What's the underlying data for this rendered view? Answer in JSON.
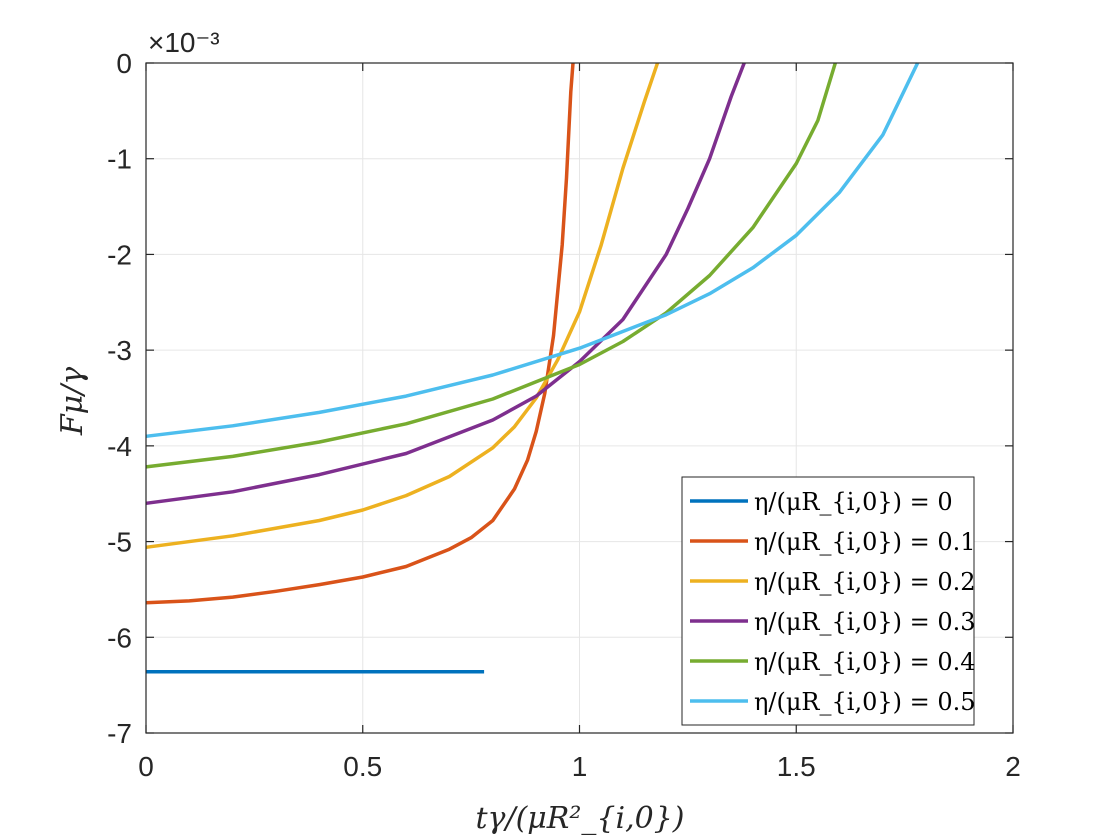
{
  "chart_data": {
    "type": "line",
    "xlabel": "tγ/(μR²_{i,0})",
    "ylabel": "Fμ/γ",
    "y_exponent_label": "×10⁻³",
    "xlim": [
      0,
      2
    ],
    "ylim": [
      -7,
      0
    ],
    "y_scale_factor": 0.001,
    "x_ticks": [
      0,
      0.5,
      1,
      1.5,
      2
    ],
    "x_tick_labels": [
      "0",
      "0.5",
      "1",
      "1.5",
      "2"
    ],
    "y_ticks": [
      0,
      -1,
      -2,
      -3,
      -4,
      -5,
      -6,
      -7
    ],
    "y_tick_labels": [
      "0",
      "-1",
      "-2",
      "-3",
      "-4",
      "-5",
      "-6",
      "-7"
    ],
    "grid": true,
    "legend_position": "bottom-right",
    "series": [
      {
        "name": "η/(μR_{i,0}) = 0",
        "color": "#0072BD",
        "x": [
          0,
          0.78
        ],
        "y": [
          -6.36,
          -6.36
        ]
      },
      {
        "name": "η/(μR_{i,0}) = 0.1",
        "color": "#D95319",
        "x": [
          0,
          0.1,
          0.2,
          0.3,
          0.4,
          0.5,
          0.6,
          0.7,
          0.75,
          0.8,
          0.85,
          0.88,
          0.9,
          0.92,
          0.94,
          0.96,
          0.97,
          0.98,
          0.985
        ],
        "y": [
          -5.64,
          -5.62,
          -5.58,
          -5.52,
          -5.45,
          -5.37,
          -5.26,
          -5.08,
          -4.96,
          -4.78,
          -4.45,
          -4.15,
          -3.85,
          -3.45,
          -2.85,
          -1.9,
          -1.2,
          -0.3,
          0
        ]
      },
      {
        "name": "η/(μR_{i,0}) = 0.2",
        "color": "#EDB120",
        "x": [
          0,
          0.2,
          0.4,
          0.5,
          0.6,
          0.7,
          0.8,
          0.85,
          0.9,
          0.95,
          1.0,
          1.05,
          1.1,
          1.15,
          1.18
        ],
        "y": [
          -5.06,
          -4.94,
          -4.78,
          -4.67,
          -4.52,
          -4.32,
          -4.02,
          -3.8,
          -3.5,
          -3.1,
          -2.6,
          -1.9,
          -1.1,
          -0.4,
          0
        ]
      },
      {
        "name": "η/(μR_{i,0}) = 0.3",
        "color": "#7E2F8E",
        "x": [
          0,
          0.2,
          0.4,
          0.6,
          0.8,
          0.9,
          1.0,
          1.1,
          1.2,
          1.25,
          1.3,
          1.35,
          1.38
        ],
        "y": [
          -4.6,
          -4.48,
          -4.3,
          -4.08,
          -3.73,
          -3.48,
          -3.12,
          -2.68,
          -2.0,
          -1.52,
          -1.0,
          -0.35,
          0
        ]
      },
      {
        "name": "η/(μR_{i,0}) = 0.4",
        "color": "#77AC30",
        "x": [
          0,
          0.2,
          0.4,
          0.6,
          0.8,
          1.0,
          1.1,
          1.2,
          1.3,
          1.4,
          1.5,
          1.55,
          1.59
        ],
        "y": [
          -4.22,
          -4.11,
          -3.96,
          -3.77,
          -3.51,
          -3.15,
          -2.91,
          -2.61,
          -2.22,
          -1.72,
          -1.05,
          -0.6,
          0
        ]
      },
      {
        "name": "η/(μR_{i,0}) = 0.5",
        "color": "#4DBEEE",
        "x": [
          0,
          0.2,
          0.4,
          0.6,
          0.8,
          1.0,
          1.2,
          1.3,
          1.4,
          1.5,
          1.6,
          1.7,
          1.78
        ],
        "y": [
          -3.9,
          -3.79,
          -3.65,
          -3.48,
          -3.26,
          -2.98,
          -2.63,
          -2.41,
          -2.14,
          -1.8,
          -1.35,
          -0.75,
          0
        ]
      }
    ]
  }
}
